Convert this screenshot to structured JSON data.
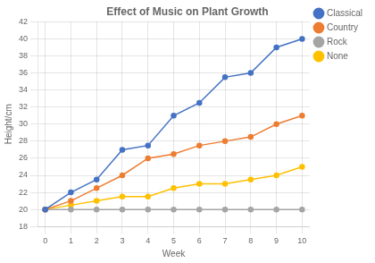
{
  "chart_data": {
    "type": "line",
    "title": "Effect of Music on Plant Growth",
    "xlabel": "Week",
    "ylabel": "Height/cm",
    "x": [
      0,
      1,
      2,
      3,
      4,
      5,
      6,
      7,
      8,
      9,
      10
    ],
    "series": [
      {
        "name": "Classical",
        "color": "#4472C4",
        "values": [
          20,
          22,
          23.5,
          27,
          27.5,
          31,
          32.5,
          35.5,
          36,
          39,
          40
        ]
      },
      {
        "name": "Country",
        "color": "#ED7D31",
        "values": [
          20,
          21,
          22.5,
          24,
          26,
          26.5,
          27.5,
          28,
          28.5,
          30,
          31
        ]
      },
      {
        "name": "Rock",
        "color": "#A5A5A5",
        "values": [
          20,
          20,
          20,
          20,
          20,
          20,
          20,
          20,
          20,
          20,
          20
        ]
      },
      {
        "name": "None",
        "color": "#FFC000",
        "values": [
          20,
          20.5,
          21,
          21.5,
          21.5,
          22.5,
          23,
          23,
          23.5,
          24,
          25
        ]
      }
    ],
    "xlim": [
      -0.3,
      10.3
    ],
    "xticks": [
      0,
      1,
      2,
      3,
      4,
      5,
      6,
      7,
      8,
      9,
      10
    ],
    "ylim": [
      18,
      42
    ],
    "yticks": [
      18,
      20,
      22,
      24,
      26,
      28,
      30,
      32,
      34,
      36,
      38,
      40,
      42
    ],
    "grid": true,
    "legend": "right",
    "marker": "o"
  }
}
